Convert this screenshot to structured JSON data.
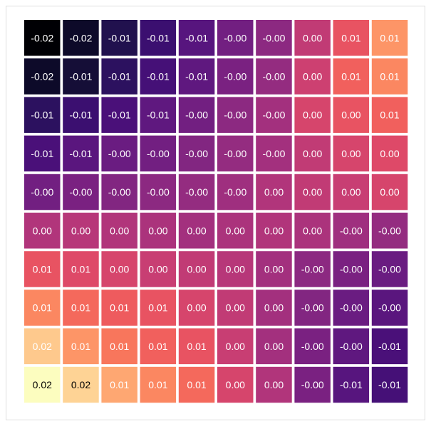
{
  "chart_data": {
    "type": "heatmap",
    "title": "",
    "xlabel": "",
    "ylabel": "",
    "rows": 10,
    "cols": 10,
    "colormap": "magma",
    "value_range": [
      -0.02,
      0.02
    ],
    "grid": false,
    "values": [
      [
        -0.02,
        -0.02,
        -0.01,
        -0.01,
        -0.01,
        -0.0,
        -0.0,
        0.0,
        0.01,
        0.01
      ],
      [
        -0.02,
        -0.01,
        -0.01,
        -0.01,
        -0.01,
        -0.0,
        -0.0,
        0.0,
        0.01,
        0.01
      ],
      [
        -0.01,
        -0.01,
        -0.01,
        -0.01,
        -0.0,
        -0.0,
        -0.0,
        0.0,
        0.0,
        0.01
      ],
      [
        -0.01,
        -0.01,
        -0.0,
        -0.0,
        -0.0,
        -0.0,
        -0.0,
        0.0,
        0.0,
        0.0
      ],
      [
        -0.0,
        -0.0,
        -0.0,
        -0.0,
        -0.0,
        -0.0,
        0.0,
        0.0,
        0.0,
        0.0
      ],
      [
        0.0,
        0.0,
        0.0,
        0.0,
        0.0,
        0.0,
        0.0,
        0.0,
        -0.0,
        -0.0
      ],
      [
        0.01,
        0.01,
        0.0,
        0.0,
        0.0,
        0.0,
        0.0,
        -0.0,
        -0.0,
        -0.0
      ],
      [
        0.01,
        0.01,
        0.01,
        0.01,
        0.0,
        0.0,
        0.0,
        -0.0,
        -0.0,
        -0.0
      ],
      [
        0.02,
        0.01,
        0.01,
        0.01,
        0.01,
        0.0,
        0.0,
        -0.0,
        -0.0,
        -0.01
      ],
      [
        0.02,
        0.02,
        0.01,
        0.01,
        0.01,
        0.0,
        0.0,
        -0.0,
        -0.01,
        -0.01
      ]
    ],
    "labels": [
      [
        "-0.02",
        "-0.02",
        "-0.01",
        "-0.01",
        "-0.01",
        "-0.00",
        "-0.00",
        "0.00",
        "0.01",
        "0.01"
      ],
      [
        "-0.02",
        "-0.01",
        "-0.01",
        "-0.01",
        "-0.01",
        "-0.00",
        "-0.00",
        "0.00",
        "0.01",
        "0.01"
      ],
      [
        "-0.01",
        "-0.01",
        "-0.01",
        "-0.01",
        "-0.00",
        "-0.00",
        "-0.00",
        "0.00",
        "0.00",
        "0.01"
      ],
      [
        "-0.01",
        "-0.01",
        "-0.00",
        "-0.00",
        "-0.00",
        "-0.00",
        "-0.00",
        "0.00",
        "0.00",
        "0.00"
      ],
      [
        "-0.00",
        "-0.00",
        "-0.00",
        "-0.00",
        "-0.00",
        "-0.00",
        "0.00",
        "0.00",
        "0.00",
        "0.00"
      ],
      [
        "0.00",
        "0.00",
        "0.00",
        "0.00",
        "0.00",
        "0.00",
        "0.00",
        "0.00",
        "-0.00",
        "-0.00"
      ],
      [
        "0.01",
        "0.01",
        "0.00",
        "0.00",
        "0.00",
        "0.00",
        "0.00",
        "-0.00",
        "-0.00",
        "-0.00"
      ],
      [
        "0.01",
        "0.01",
        "0.01",
        "0.01",
        "0.00",
        "0.00",
        "0.00",
        "-0.00",
        "-0.00",
        "-0.00"
      ],
      [
        "0.02",
        "0.01",
        "0.01",
        "0.01",
        "0.01",
        "0.00",
        "0.00",
        "-0.00",
        "-0.00",
        "-0.01"
      ],
      [
        "0.02",
        "0.02",
        "0.01",
        "0.01",
        "0.01",
        "0.00",
        "0.00",
        "-0.00",
        "-0.01",
        "-0.01"
      ]
    ],
    "colors": [
      [
        "#000004",
        "#0d0a29",
        "#21114e",
        "#3b0f70",
        "#57157e",
        "#721f81",
        "#8c2981",
        "#c13b75",
        "#e85362",
        "#fd9567"
      ],
      [
        "#0d0a29",
        "#150e37",
        "#2c115f",
        "#451077",
        "#5f187f",
        "#7a2181",
        "#942c80",
        "#cd4071",
        "#f1605d",
        "#fb8761"
      ],
      [
        "#2c115f",
        "#3b0f70",
        "#4a1079",
        "#5f187f",
        "#721f81",
        "#8c2981",
        "#a3307e",
        "#d6456c",
        "#e85362",
        "#f1605d"
      ],
      [
        "#4a1079",
        "#5a167e",
        "#6a1c81",
        "#721f81",
        "#822681",
        "#942c80",
        "#a3307e",
        "#c13b75",
        "#d6456c",
        "#de4968"
      ],
      [
        "#721f81",
        "#7a2181",
        "#822681",
        "#8c2981",
        "#942c80",
        "#9f2f7f",
        "#b1357b",
        "#c13b75",
        "#c83e73",
        "#d6456c"
      ],
      [
        "#b1357b",
        "#b73779",
        "#b1357b",
        "#ab337c",
        "#a3307e",
        "#ab337c",
        "#b1357b",
        "#ab337c",
        "#9f2f7f",
        "#942c80"
      ],
      [
        "#e85362",
        "#de4968",
        "#d6456c",
        "#c83e73",
        "#c13b75",
        "#b73779",
        "#a3307e",
        "#8c2981",
        "#7a2181",
        "#6a1c81"
      ],
      [
        "#fb8761",
        "#f4695c",
        "#ee5b5e",
        "#e85362",
        "#d6456c",
        "#c13b75",
        "#a3307e",
        "#822681",
        "#6a1c81",
        "#5a167e"
      ],
      [
        "#fec98d",
        "#fd9567",
        "#f8765c",
        "#f1605d",
        "#e85362",
        "#c83e73",
        "#a3307e",
        "#7a2181",
        "#5f187f",
        "#4a1079"
      ],
      [
        "#fcfdbf",
        "#fed395",
        "#fea772",
        "#fb8761",
        "#f4695c",
        "#d6456c",
        "#b1357b",
        "#7a2181",
        "#57157e",
        "#451077"
      ]
    ],
    "text_colors": [
      [
        "#ffffff",
        "#ffffff",
        "#ffffff",
        "#ffffff",
        "#ffffff",
        "#ffffff",
        "#ffffff",
        "#ffffff",
        "#ffffff",
        "#ffffff"
      ],
      [
        "#ffffff",
        "#ffffff",
        "#ffffff",
        "#ffffff",
        "#ffffff",
        "#ffffff",
        "#ffffff",
        "#ffffff",
        "#ffffff",
        "#ffffff"
      ],
      [
        "#ffffff",
        "#ffffff",
        "#ffffff",
        "#ffffff",
        "#ffffff",
        "#ffffff",
        "#ffffff",
        "#ffffff",
        "#ffffff",
        "#ffffff"
      ],
      [
        "#ffffff",
        "#ffffff",
        "#ffffff",
        "#ffffff",
        "#ffffff",
        "#ffffff",
        "#ffffff",
        "#ffffff",
        "#ffffff",
        "#ffffff"
      ],
      [
        "#ffffff",
        "#ffffff",
        "#ffffff",
        "#ffffff",
        "#ffffff",
        "#ffffff",
        "#ffffff",
        "#ffffff",
        "#ffffff",
        "#ffffff"
      ],
      [
        "#ffffff",
        "#ffffff",
        "#ffffff",
        "#ffffff",
        "#ffffff",
        "#ffffff",
        "#ffffff",
        "#ffffff",
        "#ffffff",
        "#ffffff"
      ],
      [
        "#ffffff",
        "#ffffff",
        "#ffffff",
        "#ffffff",
        "#ffffff",
        "#ffffff",
        "#ffffff",
        "#ffffff",
        "#ffffff",
        "#ffffff"
      ],
      [
        "#ffffff",
        "#ffffff",
        "#ffffff",
        "#ffffff",
        "#ffffff",
        "#ffffff",
        "#ffffff",
        "#ffffff",
        "#ffffff",
        "#ffffff"
      ],
      [
        "#ffffff",
        "#ffffff",
        "#ffffff",
        "#ffffff",
        "#ffffff",
        "#ffffff",
        "#ffffff",
        "#ffffff",
        "#ffffff",
        "#ffffff"
      ],
      [
        "#000000",
        "#000000",
        "#ffffff",
        "#ffffff",
        "#ffffff",
        "#ffffff",
        "#ffffff",
        "#ffffff",
        "#ffffff",
        "#ffffff"
      ]
    ]
  }
}
